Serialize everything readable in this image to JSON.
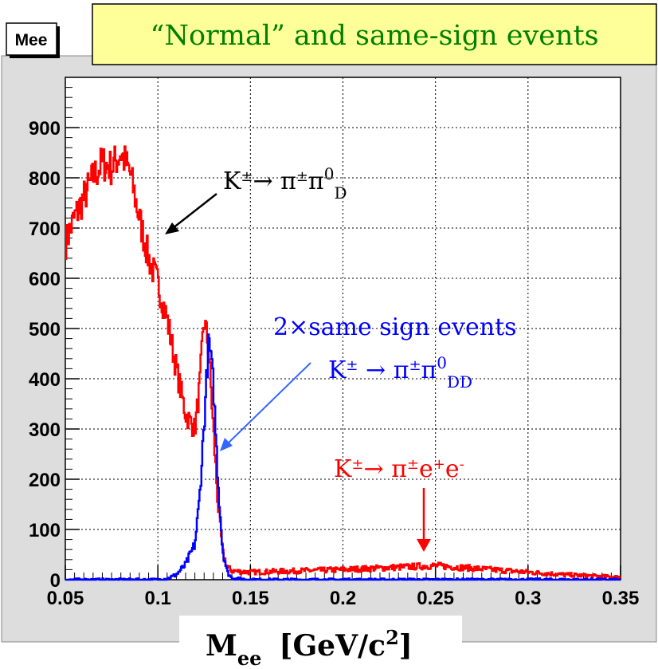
{
  "histogram_tag": "Mee",
  "banner_title": "“Normal” and same-sign events",
  "x_axis_title": {
    "main": "M",
    "sub": "ee",
    "units_open": "[GeV/c",
    "units_sup": "2",
    "units_close": "]"
  },
  "annotations": {
    "normal": {
      "text": "K± → π±π0D"
    },
    "same_sign_title": "2×same sign events",
    "same_sign": {
      "text": "K± → π±π0DD"
    },
    "dalitz": {
      "text": "K± → π±e+e-"
    }
  },
  "colors": {
    "normal": "#ff0000",
    "same_sign": "#0000ff",
    "banner_bg": "#ffff99",
    "frame_bg": "#dddddd",
    "plot_bg": "#ffffff"
  },
  "chart_data": {
    "type": "histogram",
    "title": "“Normal” and same-sign events",
    "xlabel": "Mee [GeV/c2]",
    "ylabel": "",
    "xlim": [
      0.05,
      0.35
    ],
    "ylim": [
      0,
      1000
    ],
    "xticks": [
      "0.05",
      "0.1",
      "0.15",
      "0.2",
      "0.25",
      "0.3",
      "0.35"
    ],
    "yticks": [
      "0",
      "100",
      "200",
      "300",
      "400",
      "500",
      "600",
      "700",
      "800",
      "900"
    ],
    "grid": true,
    "series": [
      {
        "name": "K± → π±π0D",
        "color": "#ff0000",
        "x": [
          0.05,
          0.055,
          0.06,
          0.065,
          0.07,
          0.075,
          0.08,
          0.085,
          0.09,
          0.095,
          0.1,
          0.105,
          0.11,
          0.115,
          0.12,
          0.1225,
          0.125,
          0.1275,
          0.13,
          0.1325,
          0.135,
          0.1375,
          0.14,
          0.145,
          0.15,
          0.2,
          0.25,
          0.3,
          0.32,
          0.35
        ],
        "values": [
          670,
          720,
          760,
          800,
          830,
          820,
          850,
          810,
          720,
          640,
          590,
          520,
          420,
          330,
          300,
          380,
          520,
          460,
          300,
          150,
          55,
          25,
          18,
          16,
          15,
          20,
          28,
          15,
          10,
          5
        ]
      },
      {
        "name": "K± → π±π0DD",
        "color": "#0000ff",
        "x": [
          0.05,
          0.1,
          0.105,
          0.11,
          0.115,
          0.12,
          0.1225,
          0.125,
          0.1275,
          0.13,
          0.1325,
          0.135,
          0.1375,
          0.14,
          0.15,
          0.2,
          0.25,
          0.3,
          0.35
        ],
        "values": [
          0,
          0,
          2,
          10,
          30,
          70,
          160,
          310,
          480,
          390,
          200,
          60,
          15,
          3,
          0,
          0,
          0,
          0,
          0
        ]
      }
    ]
  }
}
